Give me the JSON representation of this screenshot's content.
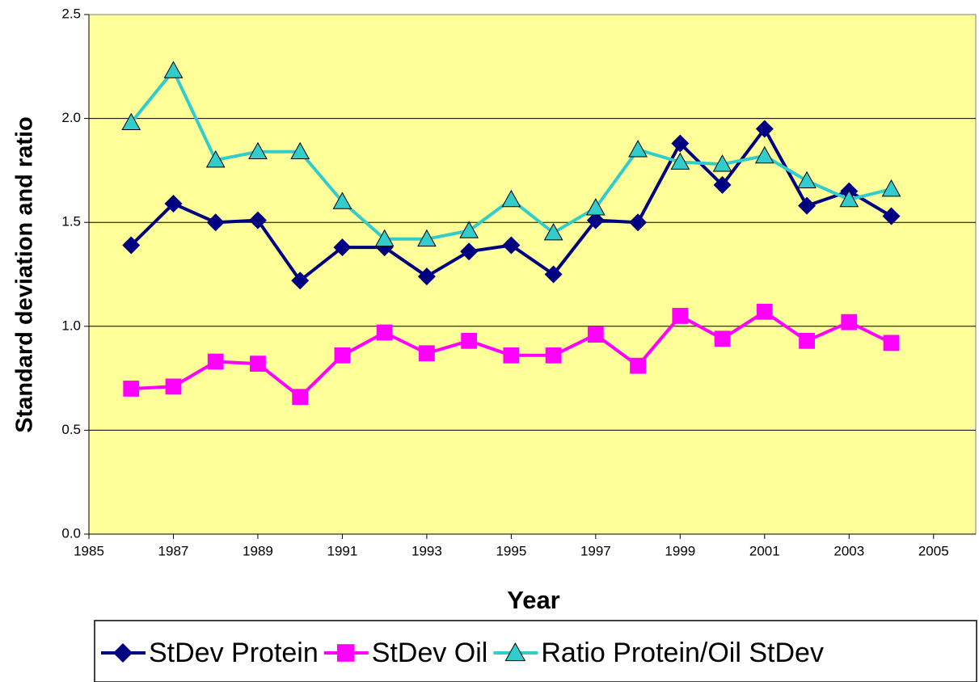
{
  "chart_data": {
    "type": "line",
    "x_label": "Year",
    "y_label": "Standard deviation and ratio",
    "x": [
      1986,
      1987,
      1988,
      1989,
      1990,
      1991,
      1992,
      1993,
      1994,
      1995,
      1996,
      1997,
      1998,
      1999,
      2000,
      2001,
      2002,
      2003,
      2004
    ],
    "series": [
      {
        "name": "StDev Protein",
        "color": "#000080",
        "marker": "diamond",
        "values": [
          1.39,
          1.59,
          1.5,
          1.51,
          1.22,
          1.38,
          1.38,
          1.24,
          1.36,
          1.39,
          1.25,
          1.51,
          1.5,
          1.88,
          1.68,
          1.95,
          1.58,
          1.65,
          1.53
        ]
      },
      {
        "name": "StDev Oil",
        "color": "#ff00ff",
        "marker": "square",
        "values": [
          0.7,
          0.71,
          0.83,
          0.82,
          0.66,
          0.86,
          0.97,
          0.87,
          0.93,
          0.86,
          0.86,
          0.96,
          0.81,
          1.05,
          0.94,
          1.07,
          0.93,
          1.02,
          0.92
        ]
      },
      {
        "name": "Ratio Protein/Oil StDev",
        "color": "#33cccc",
        "marker": "triangle",
        "values": [
          1.98,
          2.23,
          1.8,
          1.84,
          1.84,
          1.6,
          1.42,
          1.42,
          1.46,
          1.61,
          1.45,
          1.57,
          1.85,
          1.79,
          1.78,
          1.82,
          1.7,
          1.61,
          1.66
        ]
      }
    ],
    "xlim": [
      1985,
      2006
    ],
    "xticks": [
      1985,
      1987,
      1989,
      1991,
      1993,
      1995,
      1997,
      1999,
      2001,
      2003,
      2005
    ],
    "ylim": [
      0,
      2.5
    ],
    "yticks": [
      {
        "value": 0,
        "label": "0.0"
      },
      0.5,
      {
        "value": 1,
        "label": "1.0"
      },
      1.5,
      {
        "value": 2,
        "label": "2.0"
      },
      2.5
    ],
    "grid": true,
    "plot_background": "#ffff99",
    "legend": "bottom"
  }
}
